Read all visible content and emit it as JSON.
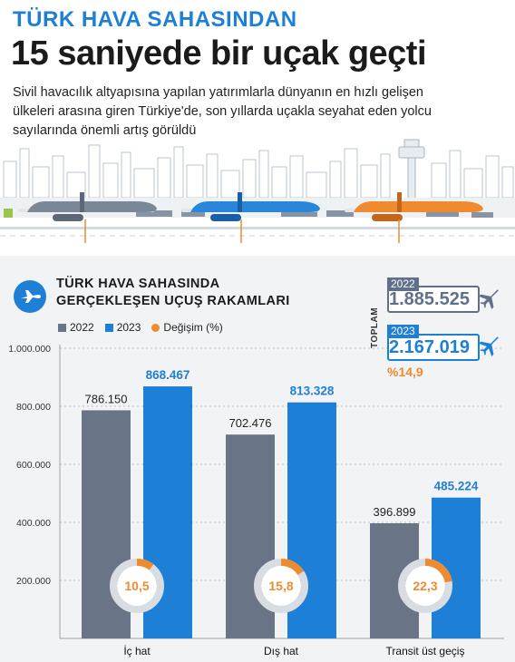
{
  "header": {
    "kicker": "TÜRK HAVA SAHASINDAN",
    "title": "15 saniyede bir uçak geçti",
    "intro": "Sivil havacılık altyapısına yapılan yatırımlarla dünyanın en hızlı gelişen ülkeleri arasına giren Türkiye'de, son yıllarda uçakla seyahat eden yolcu sayılarında önemli artış görüldü"
  },
  "section": {
    "title_line1": "TÜRK HAVA SAHASINDA",
    "title_line2": "GERÇEKLEŞEN UÇUŞ RAKAMLARI",
    "icon": "airplane-icon"
  },
  "legend": {
    "y2022": "2022",
    "y2023": "2023",
    "change": "Değişim (%)"
  },
  "totals": {
    "label": "TOPLAM",
    "year_2022": "2022",
    "value_2022": "1.885.525",
    "year_2023": "2023",
    "value_2023": "2.167.019",
    "change": "%14,9"
  },
  "colors": {
    "accent_blue": "#1e7fd6",
    "gray": "#697586",
    "orange": "#f08a2e",
    "headline": "#1b1b1b"
  },
  "chart_data": {
    "type": "bar",
    "categories": [
      "İç hat",
      "Dış hat",
      "Transit üst geçiş"
    ],
    "series": [
      {
        "name": "2022",
        "values": [
          786150,
          702476,
          396899
        ],
        "labels": [
          "786.150",
          "702.476",
          "396.899"
        ],
        "color": "#697586"
      },
      {
        "name": "2023",
        "values": [
          868467,
          813328,
          485224
        ],
        "labels": [
          "868.467",
          "813.328",
          "485.224"
        ],
        "color": "#1e7fd6"
      }
    ],
    "change_series": {
      "name": "Değişim (%)",
      "values": [
        10.5,
        15.8,
        22.3
      ],
      "labels": [
        "10,5",
        "15,8",
        "22,3"
      ],
      "color": "#f08a2e"
    },
    "ylim": [
      0,
      1000000
    ],
    "yticks": [
      200000,
      400000,
      600000,
      800000,
      1000000
    ],
    "ytick_labels": [
      "200.000",
      "400.000",
      "600.000",
      "800.000",
      "1.000.000"
    ],
    "grid": "horizontal dotted",
    "legend_position": "top-left"
  }
}
